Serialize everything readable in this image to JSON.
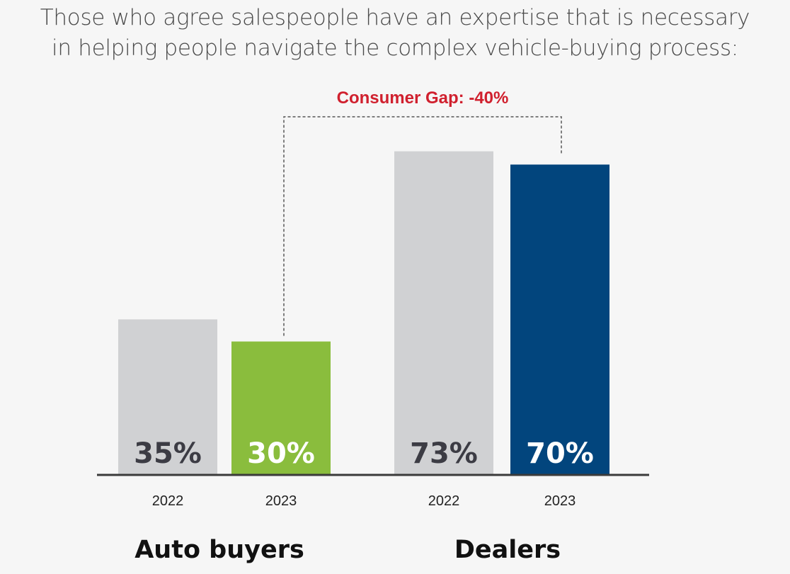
{
  "title": {
    "line1": "Those who agree salespeople have an expertise that is necessary",
    "line2": "in helping people navigate the complex vehicle-buying process:"
  },
  "chart_data": {
    "type": "bar",
    "groups": [
      {
        "name": "Auto buyers",
        "bars": [
          {
            "year": "2022",
            "value": 35,
            "label": "35%",
            "color": "#d0d1d3",
            "label_color": "#3c3c44"
          },
          {
            "year": "2023",
            "value": 30,
            "label": "30%",
            "color": "#8abd3d",
            "label_color": "#ffffff"
          }
        ]
      },
      {
        "name": "Dealers",
        "bars": [
          {
            "year": "2022",
            "value": 73,
            "label": "73%",
            "color": "#d0d1d3",
            "label_color": "#3c3c44"
          },
          {
            "year": "2023",
            "value": 70,
            "label": "70%",
            "color": "#02457d",
            "label_color": "#ffffff"
          }
        ]
      }
    ],
    "annotation": {
      "text": "Consumer Gap: -40%",
      "color": "#d0202e",
      "connects": [
        "Auto buyers 2023",
        "Dealers 2023"
      ]
    },
    "axis_color": "#3a3a3a"
  }
}
